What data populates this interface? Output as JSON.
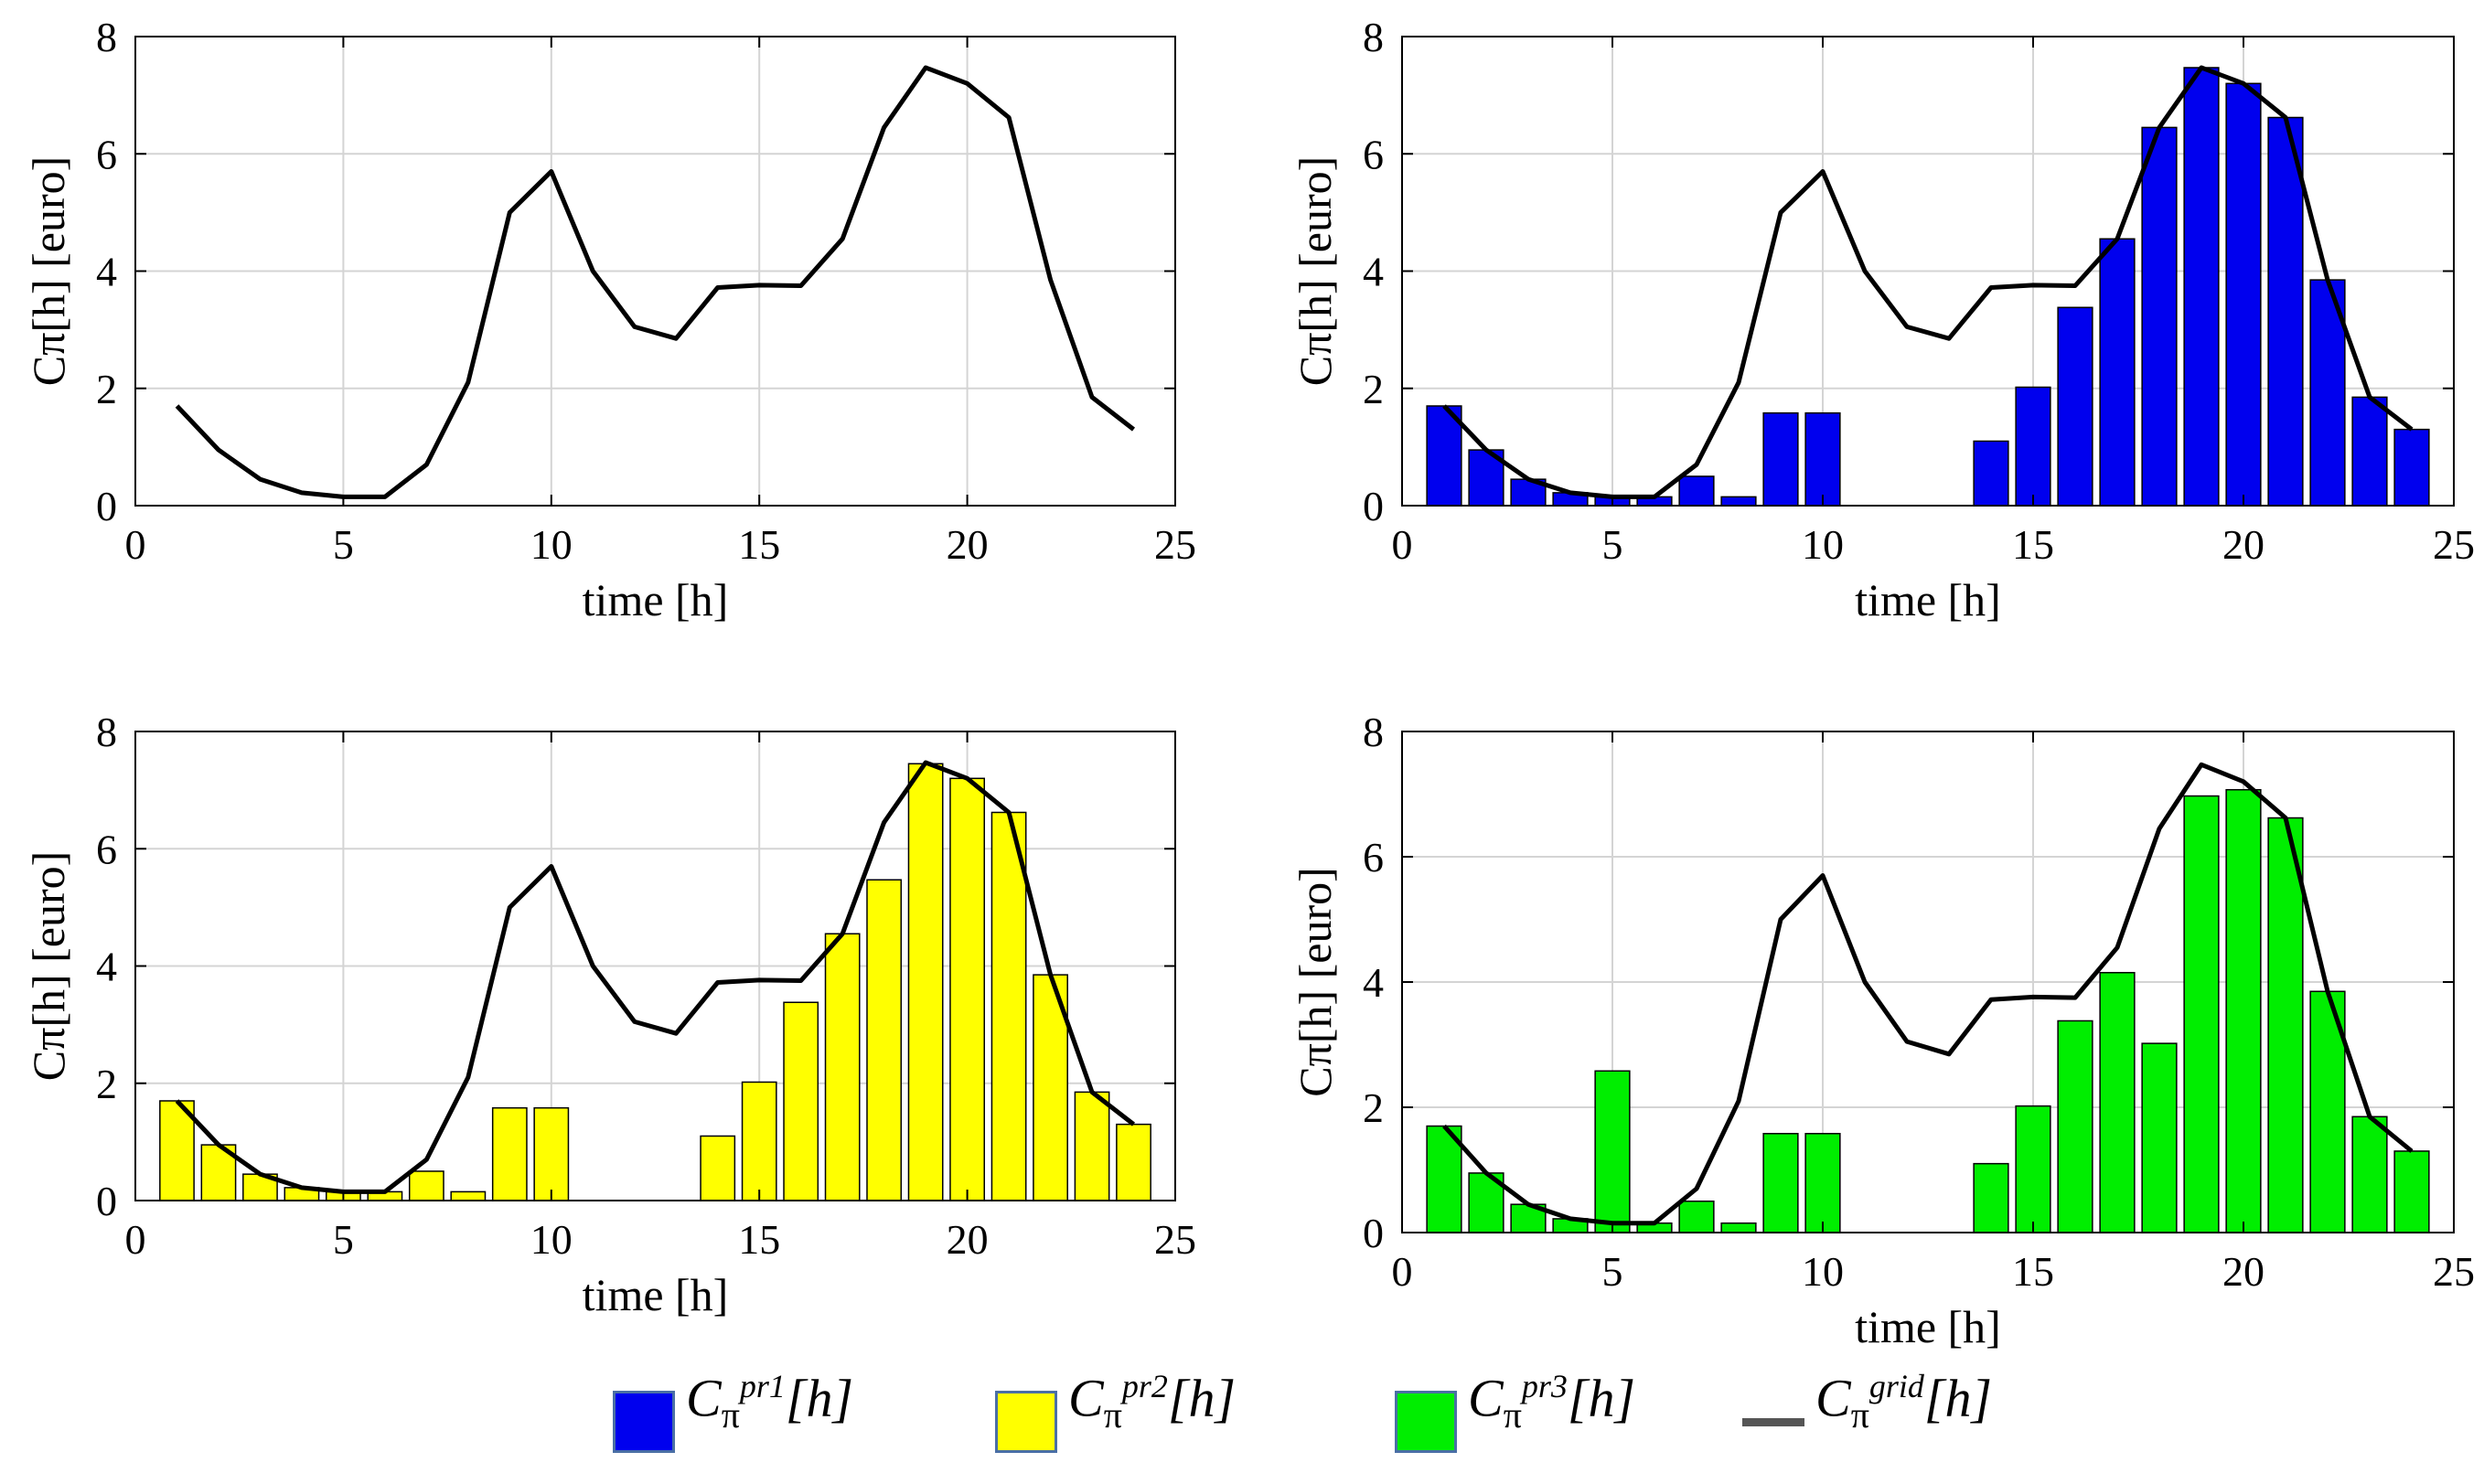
{
  "chart_data": [
    {
      "type": "line",
      "panel": "top-left",
      "x": [
        1,
        2,
        3,
        4,
        5,
        6,
        7,
        8,
        9,
        10,
        11,
        12,
        13,
        14,
        15,
        16,
        17,
        18,
        19,
        20,
        21,
        22,
        23,
        24
      ],
      "series": [
        {
          "name": "grid",
          "values": [
            1.7,
            0.95,
            0.45,
            0.22,
            0.15,
            0.15,
            0.7,
            2.1,
            5.0,
            5.7,
            4.0,
            3.05,
            2.85,
            3.72,
            3.76,
            3.75,
            4.55,
            6.45,
            7.47,
            7.2,
            6.62,
            3.85,
            1.85,
            1.3
          ]
        }
      ],
      "xlabel": "time [h]",
      "ylabel": "Cπ[h] [euro]",
      "xlim": [
        0,
        25
      ],
      "ylim": [
        0,
        8
      ],
      "xticks": [
        "0",
        "5",
        "10",
        "15",
        "20",
        "25"
      ],
      "yticks": [
        "0",
        "2",
        "4",
        "6",
        "8"
      ],
      "grid": true
    },
    {
      "type": "bar",
      "panel": "top-right",
      "x": [
        1,
        2,
        3,
        4,
        5,
        6,
        7,
        8,
        9,
        10,
        11,
        12,
        13,
        14,
        15,
        16,
        17,
        18,
        19,
        20,
        21,
        22,
        23,
        24
      ],
      "series": [
        {
          "name": "pr1",
          "color": "#0000ee",
          "values": [
            1.7,
            0.95,
            0.45,
            0.22,
            0.15,
            0.15,
            0.5,
            0.15,
            1.58,
            1.58,
            0,
            0,
            0,
            1.1,
            2.02,
            3.38,
            4.55,
            6.45,
            7.47,
            7.2,
            6.62,
            3.85,
            1.85,
            1.3
          ]
        },
        {
          "name": "grid",
          "values": [
            1.7,
            0.95,
            0.45,
            0.22,
            0.15,
            0.15,
            0.7,
            2.1,
            5.0,
            5.7,
            4.0,
            3.05,
            2.85,
            3.72,
            3.76,
            3.75,
            4.55,
            6.45,
            7.47,
            7.2,
            6.62,
            3.85,
            1.85,
            1.3
          ]
        }
      ],
      "xlabel": "time [h]",
      "ylabel": "Cπ[h] [euro]",
      "xlim": [
        0,
        25
      ],
      "ylim": [
        0,
        8
      ],
      "xticks": [
        "0",
        "5",
        "10",
        "15",
        "20",
        "25"
      ],
      "yticks": [
        "0",
        "2",
        "4",
        "6",
        "8"
      ],
      "grid": true
    },
    {
      "type": "bar",
      "panel": "bottom-left",
      "x": [
        1,
        2,
        3,
        4,
        5,
        6,
        7,
        8,
        9,
        10,
        11,
        12,
        13,
        14,
        15,
        16,
        17,
        18,
        19,
        20,
        21,
        22,
        23,
        24
      ],
      "series": [
        {
          "name": "pr2",
          "color": "#ffff00",
          "values": [
            1.7,
            0.95,
            0.45,
            0.22,
            0.15,
            0.15,
            0.5,
            0.15,
            1.58,
            1.58,
            0,
            0,
            0,
            1.1,
            2.02,
            3.38,
            4.55,
            5.47,
            7.45,
            7.2,
            6.62,
            3.85,
            1.85,
            1.3
          ]
        },
        {
          "name": "grid",
          "values": [
            1.7,
            0.95,
            0.45,
            0.22,
            0.15,
            0.15,
            0.7,
            2.1,
            5.0,
            5.7,
            4.0,
            3.05,
            2.85,
            3.72,
            3.76,
            3.75,
            4.55,
            6.45,
            7.47,
            7.2,
            6.62,
            3.85,
            1.85,
            1.3
          ]
        }
      ],
      "xlabel": "time [h]",
      "ylabel": "Cπ[h] [euro]",
      "xlim": [
        0,
        25
      ],
      "ylim": [
        0,
        8
      ],
      "xticks": [
        "0",
        "5",
        "10",
        "15",
        "20",
        "25"
      ],
      "yticks": [
        "0",
        "2",
        "4",
        "6",
        "8"
      ],
      "grid": true
    },
    {
      "type": "bar",
      "panel": "bottom-right",
      "x": [
        1,
        2,
        3,
        4,
        5,
        6,
        7,
        8,
        9,
        10,
        11,
        12,
        13,
        14,
        15,
        16,
        17,
        18,
        19,
        20,
        21,
        22,
        23,
        24
      ],
      "series": [
        {
          "name": "pr3",
          "color": "#00ee00",
          "values": [
            1.7,
            0.95,
            0.45,
            0.22,
            2.58,
            0.15,
            0.5,
            0.15,
            1.58,
            1.58,
            0,
            0,
            0,
            1.1,
            2.02,
            3.38,
            4.15,
            3.02,
            6.97,
            7.07,
            6.62,
            3.85,
            1.85,
            1.3
          ]
        },
        {
          "name": "grid",
          "values": [
            1.7,
            0.95,
            0.45,
            0.22,
            0.15,
            0.15,
            0.7,
            2.1,
            5.0,
            5.7,
            4.0,
            3.05,
            2.85,
            3.72,
            3.76,
            3.75,
            4.55,
            6.45,
            7.47,
            7.2,
            6.62,
            3.85,
            1.85,
            1.3
          ]
        }
      ],
      "xlabel": "time [h]",
      "ylabel": "Cπ[h] [euro]",
      "xlim": [
        0,
        25
      ],
      "ylim": [
        0,
        8
      ],
      "xticks": [
        "0",
        "5",
        "10",
        "15",
        "20",
        "25"
      ],
      "yticks": [
        "0",
        "2",
        "4",
        "6",
        "8"
      ],
      "grid": true
    }
  ],
  "legend": {
    "pr1": {
      "base": "C",
      "sub": "π",
      "sup": "pr1",
      "tail": "[h]",
      "color": "#0000ee"
    },
    "pr2": {
      "base": "C",
      "sub": "π",
      "sup": "pr2",
      "tail": "[h]",
      "color": "#ffff00"
    },
    "pr3": {
      "base": "C",
      "sub": "π",
      "sup": "pr3",
      "tail": "[h]",
      "color": "#00ee00"
    },
    "grid": {
      "base": "C",
      "sub": "π",
      "sup": "grid",
      "tail": "[h]",
      "color": "#555555"
    }
  }
}
